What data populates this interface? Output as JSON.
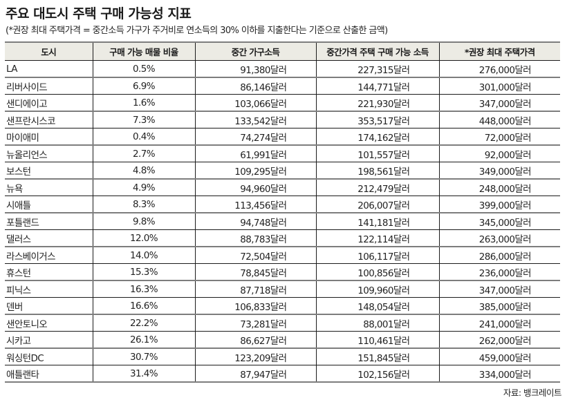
{
  "header": {
    "title": "주요 대도시 주택 구매 가능성 지표",
    "subtitle": "(*권장 최대 주택가격 =  중간소득 가구가 주거비로 연소득의 30% 이하를 지출한다는 기준으로 산출한 금액)"
  },
  "table": {
    "columns": [
      "도시",
      "구매 가능 매물 비율",
      "중간 가구소득",
      "중간가격 주택 구매 가능 소득",
      "*권장 최대 주택가격"
    ],
    "rows": [
      [
        "LA",
        "0.5%",
        "91,380달러",
        "227,315달러",
        "276,000달러"
      ],
      [
        "리버사이드",
        "6.9%",
        "86,146달러",
        "144,771달러",
        "301,000달러"
      ],
      [
        "샌디에이고",
        "1.6%",
        "103,066달러",
        "221,930달러",
        "347,000달러"
      ],
      [
        "샌프란시스코",
        "7.3%",
        "133,542달러",
        "353,517달러",
        "448,000달러"
      ],
      [
        "마이애미",
        "0.4%",
        "74,274달러",
        "174,162달러",
        "72,000달러"
      ],
      [
        "뉴올리언스",
        "2.7%",
        "61,991달러",
        "101,557달러",
        "92,000달러"
      ],
      [
        "보스턴",
        "4.8%",
        "109,295달러",
        "198,561달러",
        "349,000달러"
      ],
      [
        "뉴욕",
        "4.9%",
        "94,960달러",
        "212,479달러",
        "248,000달러"
      ],
      [
        "시애틀",
        "8.3%",
        "113,456달러",
        "206,007달러",
        "399,000달러"
      ],
      [
        "포틀랜드",
        "9.8%",
        "94,748달러",
        "141,181달러",
        "345,000달러"
      ],
      [
        "댈러스",
        "12.0%",
        "88,783달러",
        "122,114달러",
        "263,000달러"
      ],
      [
        "라스베이거스",
        "14.0%",
        "72,504달러",
        "106,117달러",
        "286,000달러"
      ],
      [
        "휴스턴",
        "15.3%",
        "78,845달러",
        "100,856달러",
        "236,000달러"
      ],
      [
        "피닉스",
        "16.3%",
        "87,718달러",
        "109,960달러",
        "347,000달러"
      ],
      [
        "덴버",
        "16.6%",
        "106,833달러",
        "148,054달러",
        "385,000달러"
      ],
      [
        "샌안토니오",
        "22.2%",
        "73,281달러",
        "88,001달러",
        "241,000달러"
      ],
      [
        "시카고",
        "26.1%",
        "86,627달러",
        "110,461달러",
        "262,000달러"
      ],
      [
        "워싱턴DC",
        "30.7%",
        "123,209달러",
        "151,845달러",
        "459,000달러"
      ],
      [
        "애틀랜타",
        "31.4%",
        "87,947달러",
        "102,156달러",
        "334,000달러"
      ]
    ]
  },
  "footer": {
    "source": "자료: 뱅크레이트"
  },
  "colors": {
    "header_bg": "#ecebe4",
    "rule_gray": "#7d7d7d",
    "rule_black": "#1a1a1a"
  }
}
